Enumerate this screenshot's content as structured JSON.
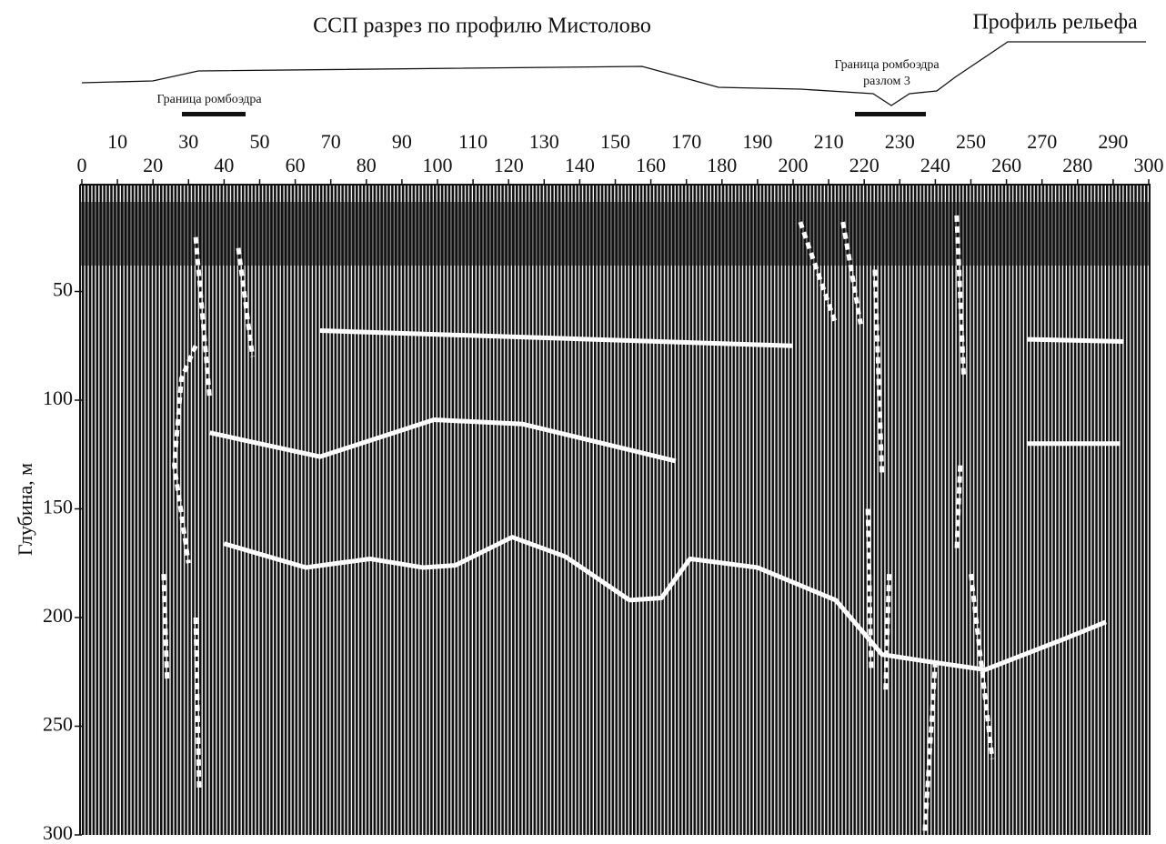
{
  "title": "ССП разрез по профилю Мистолово",
  "relief_label": "Профиль рельефа",
  "annotations": [
    {
      "lines": [
        "Граница ромбоэдра"
      ]
    },
    {
      "lines": [
        "Граница ромбоэдра",
        "разлом 3"
      ]
    }
  ],
  "x_axis": {
    "lim": [
      0,
      300
    ],
    "ticks": [
      0,
      10,
      20,
      30,
      40,
      50,
      60,
      70,
      80,
      90,
      100,
      110,
      120,
      130,
      140,
      150,
      160,
      170,
      180,
      190,
      200,
      210,
      220,
      230,
      240,
      250,
      260,
      270,
      280,
      290,
      300
    ]
  },
  "y_axis": {
    "label": "Глубина, м",
    "lim": [
      0,
      300
    ],
    "ticks": [
      50,
      100,
      150,
      200,
      250,
      300
    ]
  },
  "horizons": [
    {
      "x": [
        67,
        200
      ],
      "depth": [
        68,
        75
      ]
    },
    {
      "x": [
        266,
        293
      ],
      "depth": [
        72,
        73
      ]
    },
    {
      "x": [
        36,
        67,
        99,
        124,
        167
      ],
      "depth": [
        115,
        126,
        109,
        111,
        128
      ]
    },
    {
      "x": [
        266,
        292
      ],
      "depth": [
        120,
        120
      ]
    },
    {
      "x": [
        40,
        63,
        81,
        96,
        105,
        121,
        136,
        154,
        163,
        171,
        190,
        212,
        225,
        237,
        254,
        276,
        288
      ],
      "depth": [
        166,
        177,
        173,
        177,
        176,
        163,
        172,
        192,
        191,
        173,
        177,
        192,
        217,
        220,
        224,
        210,
        202
      ]
    }
  ],
  "faults": [
    {
      "x": [
        32,
        28,
        26,
        30
      ],
      "depth": [
        75,
        90,
        130,
        175
      ]
    },
    {
      "x": [
        32,
        36
      ],
      "depth": [
        25,
        100
      ]
    },
    {
      "x": [
        44,
        48
      ],
      "depth": [
        30,
        80
      ]
    },
    {
      "x": [
        23,
        24
      ],
      "depth": [
        180,
        230
      ]
    },
    {
      "x": [
        32,
        33
      ],
      "depth": [
        200,
        280
      ]
    },
    {
      "x": [
        202,
        212
      ],
      "depth": [
        18,
        65
      ]
    },
    {
      "x": [
        214,
        219
      ],
      "depth": [
        18,
        65
      ]
    },
    {
      "x": [
        223,
        225
      ],
      "depth": [
        40,
        135
      ]
    },
    {
      "x": [
        221,
        222
      ],
      "depth": [
        150,
        225
      ]
    },
    {
      "x": [
        227,
        226
      ],
      "depth": [
        180,
        235
      ]
    },
    {
      "x": [
        240,
        237
      ],
      "depth": [
        220,
        300
      ]
    },
    {
      "x": [
        246,
        248
      ],
      "depth": [
        15,
        90
      ]
    },
    {
      "x": [
        247,
        246
      ],
      "depth": [
        130,
        170
      ]
    },
    {
      "x": [
        250,
        256
      ],
      "depth": [
        180,
        265
      ]
    }
  ]
}
